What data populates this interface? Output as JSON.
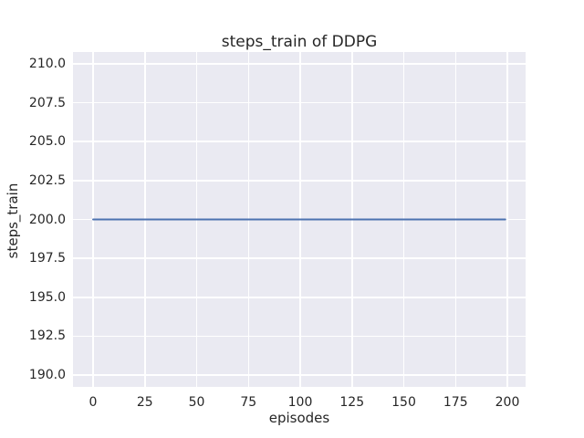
{
  "chart_data": {
    "type": "line",
    "title": "steps_train of DDPG",
    "xlabel": "episodes",
    "ylabel": "steps_train",
    "xlim": [
      -9.7,
      208.8
    ],
    "ylim": [
      189.24,
      210.76
    ],
    "xticks": [
      {
        "v": 0,
        "label": "0"
      },
      {
        "v": 25,
        "label": "25"
      },
      {
        "v": 50,
        "label": "50"
      },
      {
        "v": 75,
        "label": "75"
      },
      {
        "v": 100,
        "label": "100"
      },
      {
        "v": 125,
        "label": "125"
      },
      {
        "v": 150,
        "label": "150"
      },
      {
        "v": 175,
        "label": "175"
      },
      {
        "v": 200,
        "label": "200"
      }
    ],
    "yticks": [
      {
        "v": 190.0,
        "label": "190.0"
      },
      {
        "v": 192.5,
        "label": "192.5"
      },
      {
        "v": 195.0,
        "label": "195.0"
      },
      {
        "v": 197.5,
        "label": "197.5"
      },
      {
        "v": 200.0,
        "label": "200.0"
      },
      {
        "v": 202.5,
        "label": "202.5"
      },
      {
        "v": 205.0,
        "label": "205.0"
      },
      {
        "v": 207.5,
        "label": "207.5"
      },
      {
        "v": 210.0,
        "label": "210.0"
      }
    ],
    "series": [
      {
        "name": "steps_train",
        "color": "#4C72B0",
        "x": [
          0,
          199
        ],
        "y": [
          200,
          200
        ]
      }
    ],
    "grid": true,
    "legend": "none",
    "plot_background": "#EAEAF2",
    "gridline_color": "#FFFFFF",
    "line_width": 2
  }
}
